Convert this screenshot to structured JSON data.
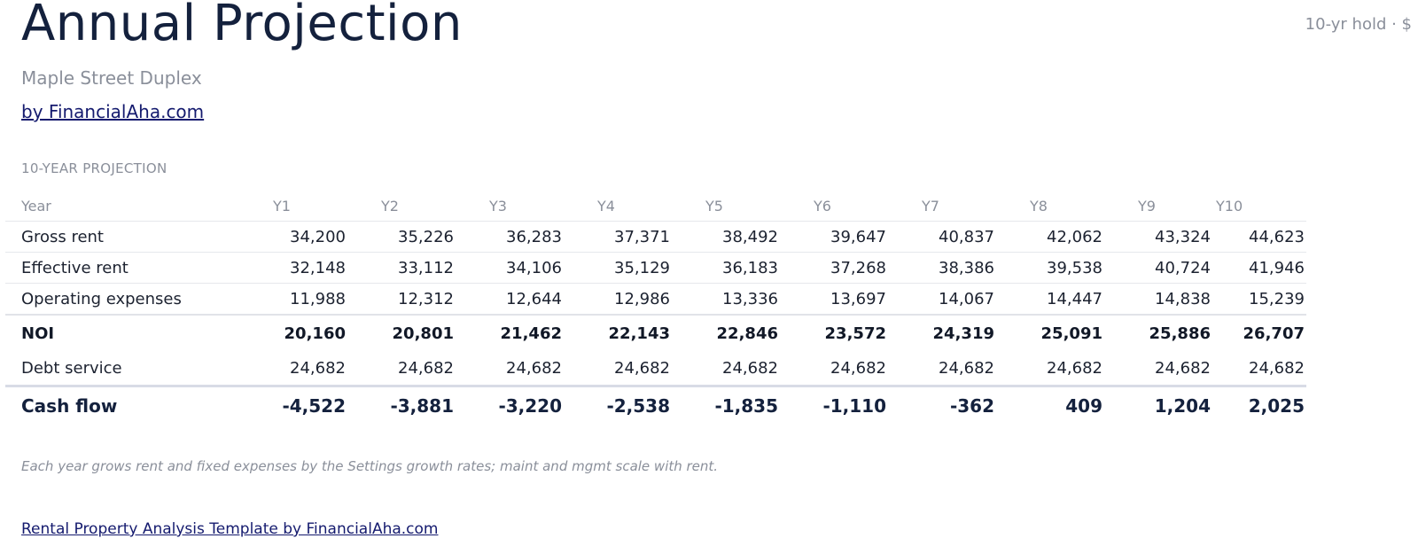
{
  "header": {
    "title": "Annual Projection",
    "hold_note": "10-yr hold · $",
    "subtitle": "Maple Street Duplex",
    "byline": "by FinancialAha.com"
  },
  "section": {
    "label": "10-YEAR PROJECTION"
  },
  "table": {
    "columns": [
      "Year",
      "Y1",
      "Y2",
      "Y3",
      "Y4",
      "Y5",
      "Y6",
      "Y7",
      "Y8",
      "Y9",
      "Y10"
    ],
    "rows": [
      {
        "label": "Gross rent",
        "values": [
          "34,200",
          "35,226",
          "36,283",
          "37,371",
          "38,492",
          "39,647",
          "40,837",
          "42,062",
          "43,324",
          "44,623"
        ]
      },
      {
        "label": "Effective rent",
        "values": [
          "32,148",
          "33,112",
          "34,106",
          "35,129",
          "36,183",
          "37,268",
          "38,386",
          "39,538",
          "40,724",
          "41,946"
        ]
      },
      {
        "label": "Operating expenses",
        "values": [
          "11,988",
          "12,312",
          "12,644",
          "12,986",
          "13,336",
          "13,697",
          "14,067",
          "14,447",
          "14,838",
          "15,239"
        ]
      },
      {
        "label": "NOI",
        "values": [
          "20,160",
          "20,801",
          "21,462",
          "22,143",
          "22,846",
          "23,572",
          "24,319",
          "25,091",
          "25,886",
          "26,707"
        ]
      },
      {
        "label": "Debt service",
        "values": [
          "24,682",
          "24,682",
          "24,682",
          "24,682",
          "24,682",
          "24,682",
          "24,682",
          "24,682",
          "24,682",
          "24,682"
        ]
      },
      {
        "label": "Cash flow",
        "values": [
          "-4,522",
          "-3,881",
          "-3,220",
          "-2,538",
          "-1,835",
          "-1,110",
          "-362",
          "409",
          "1,204",
          "2,025"
        ]
      }
    ]
  },
  "footnote": "Each year grows rent and fixed expenses by the Settings growth rates; maint and mgmt scale with rent.",
  "footer": {
    "link": "Rental Property Analysis Template by FinancialAha.com"
  },
  "colors": {
    "title": "#14213d",
    "muted": "#8a8f9a",
    "link": "#141a6e",
    "rule": "#e6e8ec"
  }
}
